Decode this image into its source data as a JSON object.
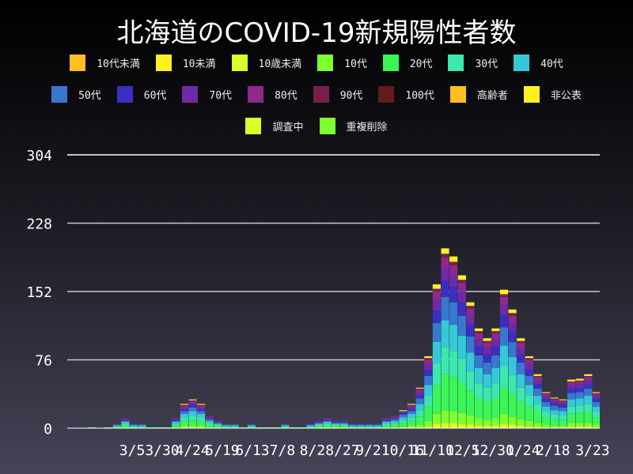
{
  "chart_data": {
    "type": "bar",
    "stacked": true,
    "title": "北海道のCOVID-19新規陽性者数",
    "x_start": "2020-01-14",
    "x_step_days": 7,
    "x_range": [
      "2020-01-11",
      "2021-03-29"
    ],
    "ylim": [
      0,
      304
    ],
    "yticks": [
      0,
      76,
      152,
      228,
      304
    ],
    "grid": true,
    "legend_position": "top",
    "xticks": [
      {
        "label": "3/5",
        "date": "2020-03-05"
      },
      {
        "label": "3/30",
        "date": "2020-03-30"
      },
      {
        "label": "4/24",
        "date": "2020-04-24"
      },
      {
        "label": "5/19",
        "date": "2020-05-19"
      },
      {
        "label": "6/13",
        "date": "2020-06-13"
      },
      {
        "label": "7/8",
        "date": "2020-07-08"
      },
      {
        "label": "8/2",
        "date": "2020-08-02"
      },
      {
        "label": "8/27",
        "date": "2020-08-27"
      },
      {
        "label": "9/21",
        "date": "2020-09-21"
      },
      {
        "label": "10/16",
        "date": "2020-10-16"
      },
      {
        "label": "11/10",
        "date": "2020-11-10"
      },
      {
        "label": "12/5",
        "date": "2020-12-05"
      },
      {
        "label": "12/30",
        "date": "2020-12-30"
      },
      {
        "label": "1/24",
        "date": "2021-01-24"
      },
      {
        "label": "2/18",
        "date": "2021-02-18"
      },
      {
        "label": "3/23",
        "date": "2021-03-23"
      }
    ],
    "series": [
      {
        "name": "10代未満",
        "color": "#ffbf20",
        "values": []
      },
      {
        "name": "10未満",
        "color": "#fff020",
        "values": []
      },
      {
        "name": "10歳未満",
        "color": "#d8ff2a",
        "values": [
          0,
          0,
          0,
          0,
          0,
          0,
          0,
          0,
          0,
          0,
          0,
          0,
          0,
          1,
          1,
          1,
          0,
          0,
          0,
          0,
          0,
          0,
          0,
          0,
          0,
          0,
          0,
          0,
          0,
          0,
          0,
          0,
          0,
          0,
          0,
          0,
          0,
          0,
          0,
          1,
          1,
          1,
          2,
          5,
          6,
          6,
          5,
          4,
          3,
          3,
          3,
          5,
          4,
          3,
          2,
          2,
          1,
          1,
          1,
          2,
          2,
          2,
          1
        ]
      },
      {
        "name": "10代",
        "color": "#7dff30",
        "values": [
          0,
          0,
          0,
          0,
          0,
          0,
          1,
          0,
          0,
          0,
          0,
          0,
          1,
          2,
          2,
          2,
          1,
          1,
          0,
          0,
          0,
          0,
          0,
          0,
          0,
          0,
          0,
          0,
          0,
          1,
          1,
          1,
          1,
          0,
          0,
          0,
          0,
          1,
          1,
          1,
          2,
          3,
          6,
          11,
          14,
          13,
          12,
          10,
          8,
          7,
          8,
          11,
          9,
          7,
          6,
          4,
          3,
          2,
          2,
          4,
          4,
          4,
          3
        ]
      },
      {
        "name": "20代",
        "color": "#3bf558",
        "values": [
          0,
          0,
          1,
          0,
          1,
          1,
          2,
          1,
          1,
          1,
          1,
          1,
          2,
          5,
          6,
          5,
          3,
          2,
          1,
          1,
          1,
          1,
          1,
          1,
          1,
          1,
          1,
          1,
          1,
          2,
          2,
          2,
          2,
          1,
          1,
          1,
          1,
          2,
          3,
          4,
          5,
          9,
          16,
          32,
          40,
          38,
          34,
          28,
          22,
          20,
          22,
          30,
          26,
          20,
          16,
          12,
          8,
          7,
          6,
          10,
          11,
          12,
          8
        ]
      },
      {
        "name": "30代",
        "color": "#3de8ad",
        "values": [
          0,
          0,
          0,
          0,
          0,
          1,
          2,
          1,
          1,
          0,
          0,
          0,
          2,
          4,
          5,
          4,
          2,
          1,
          1,
          1,
          0,
          1,
          0,
          0,
          0,
          1,
          0,
          0,
          1,
          1,
          2,
          1,
          1,
          1,
          1,
          1,
          1,
          2,
          2,
          3,
          4,
          7,
          12,
          24,
          30,
          29,
          26,
          21,
          17,
          15,
          17,
          23,
          20,
          15,
          12,
          9,
          6,
          5,
          5,
          8,
          8,
          9,
          6
        ]
      },
      {
        "name": "40代",
        "color": "#35c9d8",
        "values": [
          0,
          0,
          0,
          0,
          0,
          1,
          2,
          1,
          1,
          0,
          0,
          0,
          2,
          4,
          5,
          4,
          2,
          1,
          1,
          1,
          0,
          1,
          0,
          0,
          0,
          1,
          0,
          0,
          1,
          1,
          2,
          1,
          1,
          1,
          1,
          1,
          1,
          2,
          2,
          3,
          4,
          7,
          12,
          24,
          30,
          29,
          26,
          21,
          17,
          15,
          17,
          23,
          20,
          15,
          12,
          9,
          6,
          5,
          5,
          8,
          8,
          9,
          6
        ]
      },
      {
        "name": "50代",
        "color": "#3878d0",
        "values": [
          0,
          0,
          0,
          0,
          0,
          1,
          1,
          1,
          1,
          0,
          0,
          0,
          1,
          3,
          4,
          3,
          2,
          1,
          1,
          1,
          0,
          1,
          0,
          0,
          0,
          1,
          0,
          0,
          1,
          1,
          1,
          1,
          1,
          1,
          1,
          1,
          1,
          1,
          2,
          3,
          3,
          6,
          10,
          21,
          26,
          25,
          22,
          18,
          14,
          13,
          14,
          20,
          17,
          13,
          10,
          8,
          5,
          5,
          4,
          7,
          7,
          8,
          5
        ]
      },
      {
        "name": "60代",
        "color": "#3a2fc0",
        "values": [
          0,
          0,
          0,
          0,
          0,
          0,
          1,
          1,
          0,
          0,
          0,
          0,
          1,
          2,
          3,
          2,
          1,
          1,
          0,
          0,
          0,
          0,
          0,
          0,
          0,
          0,
          0,
          0,
          1,
          1,
          1,
          1,
          1,
          1,
          1,
          0,
          1,
          1,
          1,
          2,
          2,
          4,
          7,
          14,
          18,
          17,
          15,
          13,
          10,
          9,
          10,
          14,
          12,
          9,
          7,
          5,
          4,
          3,
          3,
          5,
          5,
          5,
          4
        ]
      },
      {
        "name": "70代",
        "color": "#6f2aa8",
        "values": [
          0,
          0,
          0,
          0,
          0,
          0,
          1,
          0,
          0,
          0,
          0,
          0,
          1,
          2,
          2,
          2,
          1,
          1,
          0,
          0,
          0,
          0,
          0,
          0,
          0,
          0,
          0,
          0,
          0,
          1,
          1,
          1,
          1,
          0,
          0,
          0,
          0,
          1,
          1,
          1,
          2,
          3,
          6,
          11,
          14,
          13,
          12,
          10,
          8,
          7,
          8,
          11,
          9,
          7,
          6,
          4,
          3,
          2,
          2,
          4,
          4,
          4,
          3
        ]
      },
      {
        "name": "80代",
        "color": "#8d2a8c",
        "values": [
          0,
          0,
          0,
          0,
          0,
          0,
          1,
          0,
          0,
          0,
          0,
          0,
          1,
          2,
          2,
          2,
          1,
          0,
          0,
          0,
          0,
          0,
          0,
          0,
          0,
          0,
          0,
          0,
          0,
          0,
          1,
          0,
          0,
          0,
          0,
          0,
          0,
          1,
          1,
          1,
          2,
          3,
          5,
          10,
          12,
          11,
          10,
          8,
          7,
          6,
          7,
          9,
          8,
          6,
          5,
          4,
          2,
          2,
          2,
          3,
          3,
          4,
          2
        ]
      },
      {
        "name": "90代",
        "color": "#771f4c",
        "values": [
          0,
          0,
          0,
          0,
          0,
          0,
          0,
          0,
          0,
          0,
          0,
          0,
          0,
          1,
          1,
          1,
          0,
          0,
          0,
          0,
          0,
          0,
          0,
          0,
          0,
          0,
          0,
          0,
          0,
          0,
          0,
          0,
          0,
          0,
          0,
          0,
          0,
          0,
          0,
          0,
          1,
          1,
          2,
          3,
          4,
          4,
          3,
          3,
          2,
          2,
          2,
          3,
          3,
          2,
          2,
          1,
          1,
          1,
          1,
          1,
          1,
          1,
          1
        ]
      },
      {
        "name": "100代",
        "color": "#611c1c",
        "values": []
      },
      {
        "name": "高齢者",
        "color": "#ffbf20",
        "values": []
      },
      {
        "name": "非公表",
        "color": "#fff020",
        "values": [
          0,
          0,
          0,
          0,
          0,
          0,
          0,
          0,
          0,
          0,
          0,
          0,
          0,
          1,
          1,
          1,
          0,
          0,
          0,
          0,
          0,
          0,
          0,
          0,
          0,
          0,
          0,
          0,
          0,
          0,
          0,
          0,
          0,
          0,
          0,
          0,
          0,
          0,
          0,
          1,
          1,
          1,
          2,
          5,
          6,
          6,
          5,
          4,
          3,
          3,
          3,
          5,
          4,
          3,
          2,
          2,
          1,
          1,
          1,
          2,
          2,
          2,
          1
        ]
      },
      {
        "name": "調査中",
        "color": "#d8ff2a",
        "values": []
      },
      {
        "name": "重複削除",
        "color": "#7dff30",
        "values": []
      }
    ]
  }
}
